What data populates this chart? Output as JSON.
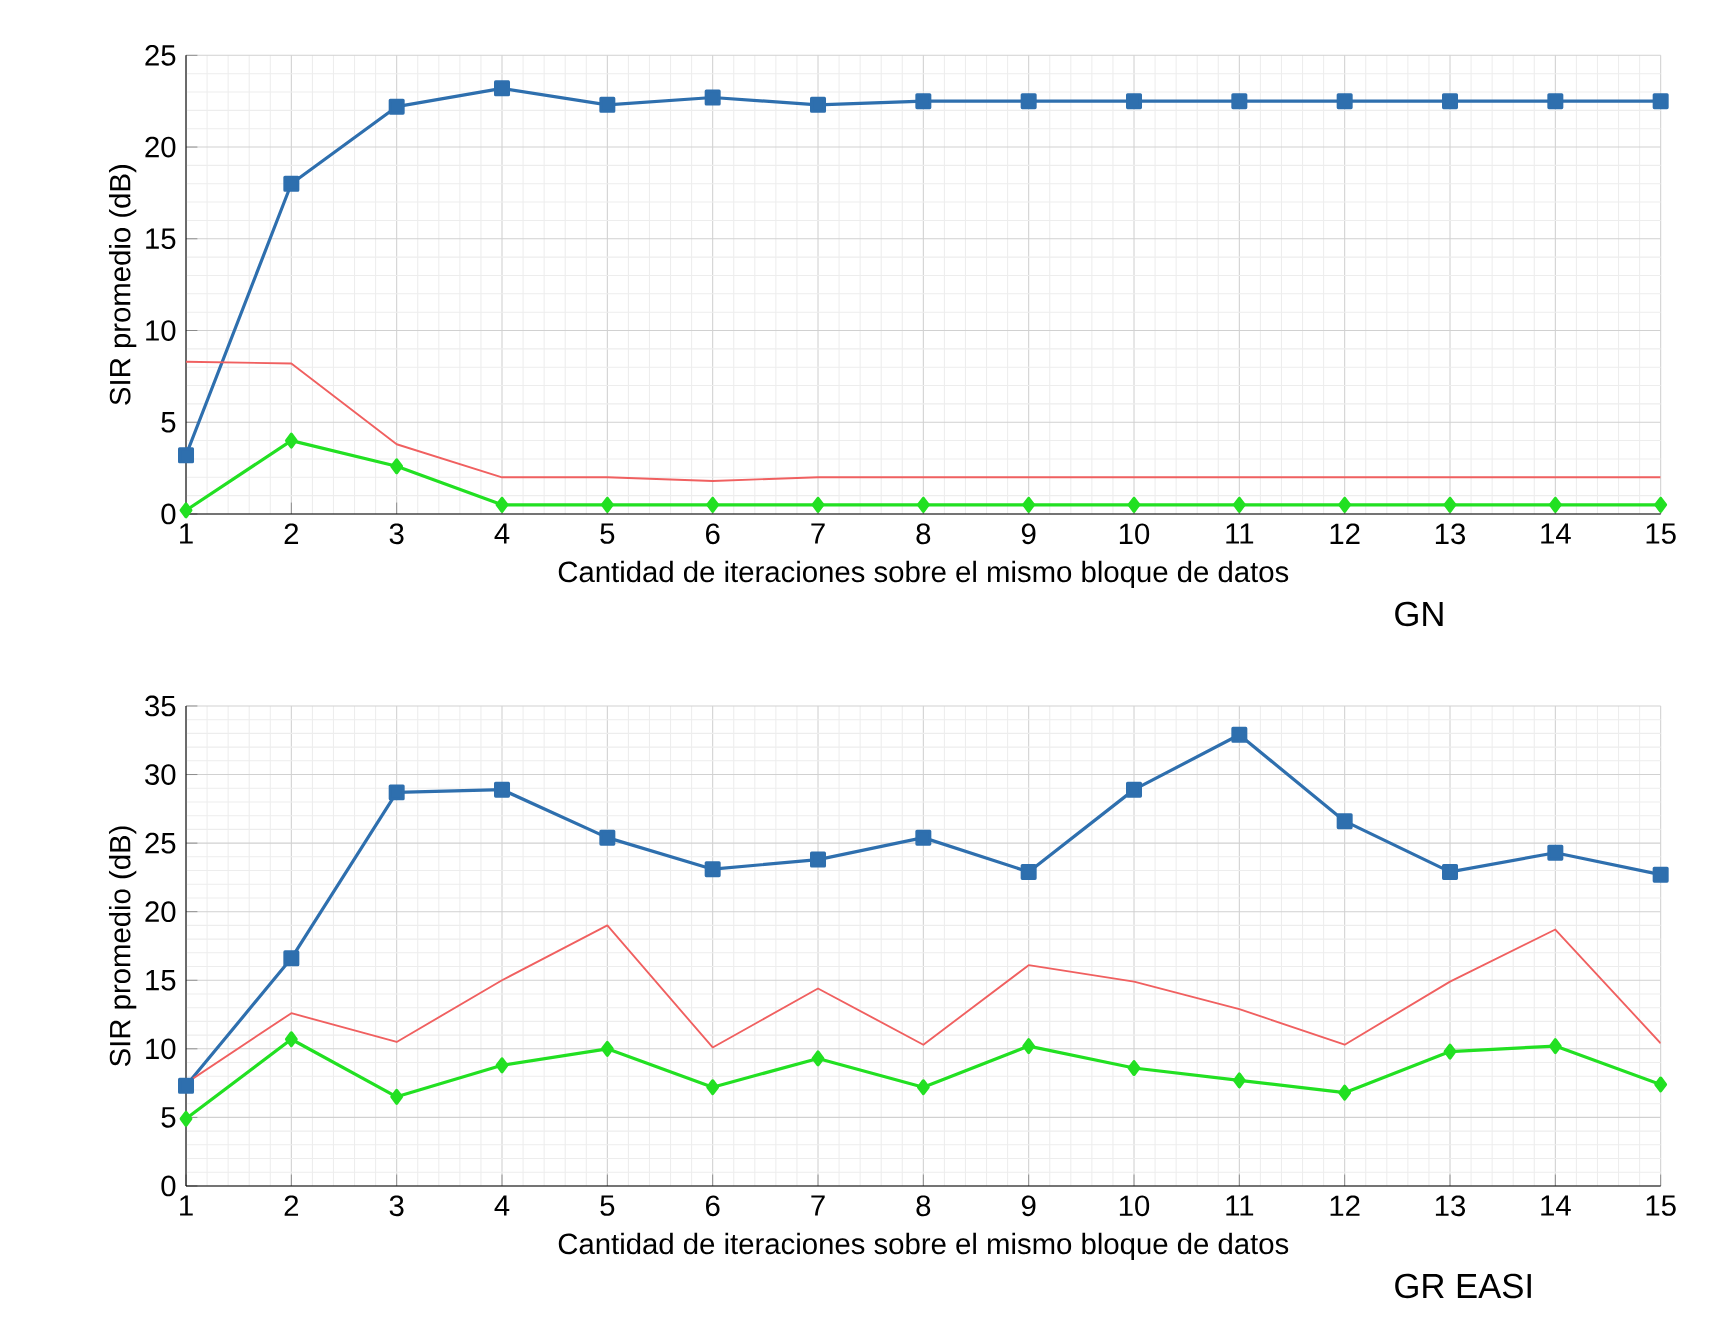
{
  "chart_data": [
    {
      "type": "line",
      "x": [
        1,
        2,
        3,
        4,
        5,
        6,
        7,
        8,
        9,
        10,
        11,
        12,
        13,
        14,
        15
      ],
      "xlabel": "Cantidad de iteraciones sobre el mismo bloque de datos",
      "ylabel": "SIR promedio (dB)",
      "annotations": [
        "GN"
      ],
      "xlim": [
        1,
        15
      ],
      "ylim": [
        0,
        25
      ],
      "xticks": [
        1,
        2,
        3,
        4,
        5,
        6,
        7,
        8,
        9,
        10,
        11,
        12,
        13,
        14,
        15
      ],
      "yticks": [
        0,
        5,
        10,
        15,
        20,
        25
      ],
      "grid": true,
      "line_style": "solid",
      "series": [
        {
          "color": "#2e6fae",
          "marker": "square",
          "values": [
            3.2,
            18.0,
            22.2,
            23.2,
            22.3,
            22.7,
            22.3,
            22.5,
            22.5,
            22.5,
            22.5,
            22.5,
            22.5,
            22.5,
            22.5
          ]
        },
        {
          "color": "#f06060",
          "marker": "none",
          "values": [
            8.3,
            8.2,
            3.8,
            2.0,
            2.0,
            1.8,
            2.0,
            2.0,
            2.0,
            2.0,
            2.0,
            2.0,
            2.0,
            2.0,
            2.0
          ]
        },
        {
          "color": "#22e022",
          "marker": "diamond",
          "values": [
            0.2,
            4.0,
            2.6,
            0.5,
            0.5,
            0.5,
            0.5,
            0.5,
            0.5,
            0.5,
            0.5,
            0.5,
            0.5,
            0.5,
            0.5
          ]
        }
      ]
    },
    {
      "type": "line",
      "x": [
        1,
        2,
        3,
        4,
        5,
        6,
        7,
        8,
        9,
        10,
        11,
        12,
        13,
        14,
        15
      ],
      "xlabel": "Cantidad de iteraciones sobre el mismo bloque de datos",
      "ylabel": "SIR promedio (dB)",
      "annotations": [
        "GR EASI"
      ],
      "xlim": [
        1,
        15
      ],
      "ylim": [
        0,
        35
      ],
      "xticks": [
        1,
        2,
        3,
        4,
        5,
        6,
        7,
        8,
        9,
        10,
        11,
        12,
        13,
        14,
        15
      ],
      "yticks": [
        0,
        5,
        10,
        15,
        20,
        25,
        30,
        35
      ],
      "grid": true,
      "line_style": "solid",
      "series": [
        {
          "color": "#2e6fae",
          "marker": "square",
          "values": [
            7.3,
            16.6,
            28.7,
            28.9,
            25.4,
            23.1,
            23.8,
            25.4,
            22.9,
            28.9,
            32.9,
            26.6,
            22.9,
            24.3,
            22.7
          ]
        },
        {
          "color": "#f06060",
          "marker": "none",
          "values": [
            7.5,
            12.6,
            10.5,
            15.0,
            19.0,
            10.1,
            14.4,
            10.3,
            16.1,
            14.9,
            12.9,
            10.3,
            14.9,
            18.7,
            10.4
          ]
        },
        {
          "color": "#22e022",
          "marker": "diamond",
          "values": [
            4.9,
            10.7,
            6.5,
            8.8,
            10.0,
            7.2,
            9.3,
            7.2,
            10.2,
            8.6,
            7.7,
            6.8,
            9.8,
            10.2,
            7.4
          ]
        }
      ]
    }
  ]
}
